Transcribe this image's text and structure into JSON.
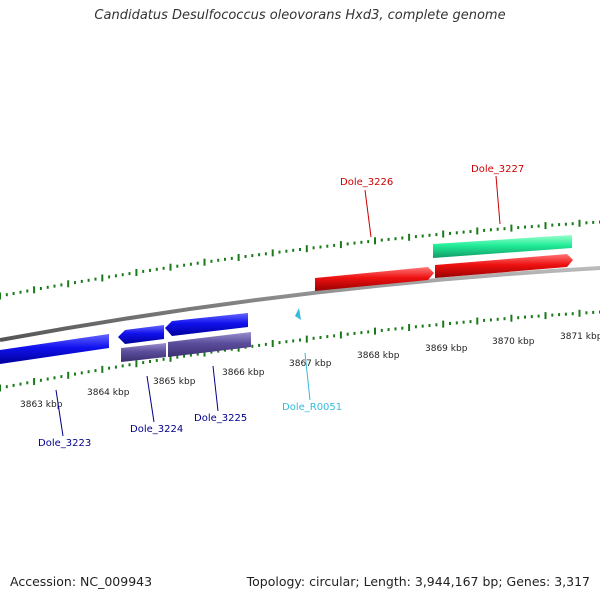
{
  "title": "Candidatus Desulfococcus oleovorans Hxd3, complete genome",
  "footer": {
    "accession": "Accession: NC_009943",
    "summary": "Topology: circular; Length: 3,944,167 bp; Genes: 3,317"
  },
  "ruler": {
    "labels": [
      "3863 kbp",
      "3864 kbp",
      "3865 kbp",
      "3866 kbp",
      "3867 kbp",
      "3868 kbp",
      "3869 kbp",
      "3870 kbp",
      "3871 kbp"
    ]
  },
  "genes": [
    {
      "name": "Dole_3223",
      "color": "#00008b"
    },
    {
      "name": "Dole_3224",
      "color": "#00008b"
    },
    {
      "name": "Dole_3225",
      "color": "#00008b"
    },
    {
      "name": "Dole_R0051",
      "color": "#33bbdd"
    },
    {
      "name": "Dole_3226",
      "color": "#cc0000"
    },
    {
      "name": "Dole_3227",
      "color": "#cc0000"
    }
  ],
  "colors": {
    "backbone": "#808080",
    "ticks": "#1a7a1a",
    "forward_cds": "#ee1111",
    "forward_rna": "#22ee99",
    "reverse_cds": "#1111ee",
    "reverse_rna": "#5b4d9c"
  }
}
